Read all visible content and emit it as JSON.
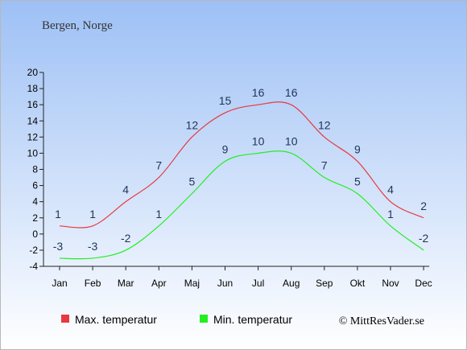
{
  "chart_data": {
    "type": "line",
    "title": "Bergen, Norge",
    "categories": [
      "Jan",
      "Feb",
      "Mar",
      "Apr",
      "Maj",
      "Jun",
      "Jul",
      "Aug",
      "Sep",
      "Okt",
      "Nov",
      "Dec"
    ],
    "series": [
      {
        "name": "Max. temperatur",
        "color": "#e8393f",
        "values": [
          1,
          1,
          4,
          7,
          12,
          15,
          16,
          16,
          12,
          9,
          4,
          2
        ]
      },
      {
        "name": "Min. temperatur",
        "color": "#22ee22",
        "values": [
          -3,
          -3,
          -2,
          1,
          5,
          9,
          10,
          10,
          7,
          5,
          1,
          -2
        ]
      }
    ],
    "ylim": [
      -4,
      20
    ],
    "yticks": [
      -4,
      -2,
      0,
      2,
      4,
      6,
      8,
      10,
      12,
      14,
      16,
      18,
      20
    ],
    "grid": false,
    "legend_position": "bottom",
    "credit": "© MittResVader.se"
  },
  "colors": {
    "background_top": "#9dc0f5",
    "background_bottom": "#ffffff",
    "label_text": "#1f3558"
  }
}
